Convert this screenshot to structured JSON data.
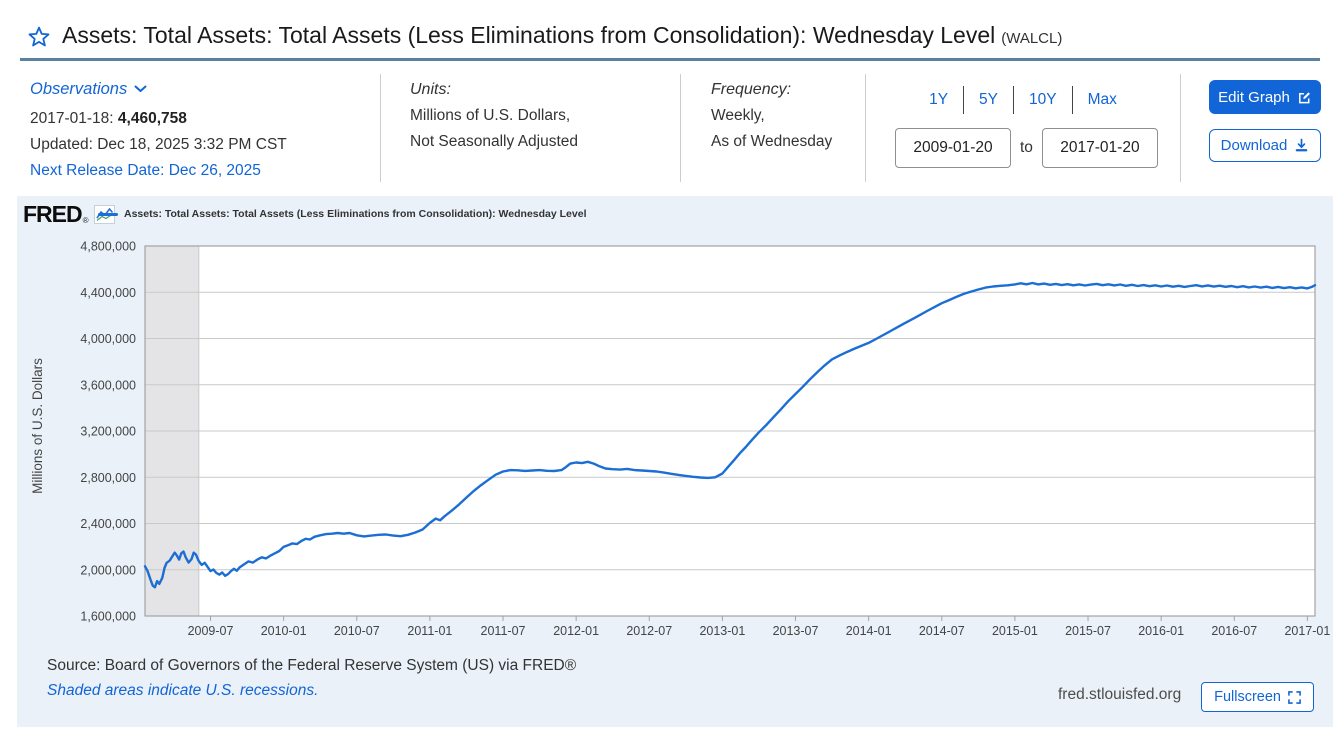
{
  "header": {
    "title": "Assets: Total Assets: Total Assets (Less Eliminations from Consolidation): Wednesday Level",
    "series_id": "(WALCL)"
  },
  "meta": {
    "observations": {
      "label": "Observations",
      "latest_date": "2017-01-18:",
      "latest_value": "4,460,758",
      "updated": "Updated: Dec 18, 2025 3:32 PM CST",
      "next_release": "Next Release Date: Dec 26, 2025"
    },
    "units": {
      "label": "Units:",
      "line1": "Millions of U.S. Dollars,",
      "line2": "Not Seasonally Adjusted"
    },
    "frequency": {
      "label": "Frequency:",
      "line1": "Weekly,",
      "line2": "As of Wednesday"
    },
    "range": {
      "presets": [
        "1Y",
        "5Y",
        "10Y",
        "Max"
      ],
      "start_date": "2009-01-20",
      "to_label": "to",
      "end_date": "2017-01-20"
    },
    "actions": {
      "edit_graph": "Edit Graph",
      "download": "Download"
    }
  },
  "footer": {
    "logo": "FRED",
    "reg": "®",
    "source": "Source: Board of Governors of the Federal Reserve System (US) via FRED®",
    "recession_note": "Shaded areas indicate U.S. recessions.",
    "site": "fred.stlouisfed.org",
    "fullscreen": "Fullscreen"
  },
  "colors": {
    "accent": "#1165d6",
    "line": "#1b6ed3",
    "header_rule": "#5b81a1",
    "card_bg": "#eaf1f9",
    "recession": "#e4e4e6"
  },
  "chart_data": {
    "type": "line",
    "title": "Assets: Total Assets: Total Assets (Less Eliminations from Consolidation): Wednesday Level",
    "ylabel": "Millions of U.S. Dollars",
    "ylim": [
      1600000,
      4800000
    ],
    "ytick_step": 400000,
    "grid": true,
    "legend_position": "top-left",
    "x_range_decimal_years": [
      2009.052,
      2017.052
    ],
    "x_ticks": [
      "2009-07",
      "2010-01",
      "2010-07",
      "2011-01",
      "2011-07",
      "2012-01",
      "2012-07",
      "2013-01",
      "2013-07",
      "2014-01",
      "2014-07",
      "2015-01",
      "2015-07",
      "2016-01",
      "2016-07",
      "2017-01"
    ],
    "recession_band_decimal_years": [
      2009.052,
      2009.42
    ],
    "last_observation": {
      "date": "2017-01-18",
      "value": 4460758
    },
    "series": [
      {
        "name": "Assets: Total Assets: Total Assets (Less Eliminations from Consolidation): Wednesday Level",
        "color": "#1b6ed3",
        "points": [
          [
            2009.052,
            2030000
          ],
          [
            2009.07,
            1988000
          ],
          [
            2009.09,
            1912000
          ],
          [
            2009.105,
            1862000
          ],
          [
            2009.12,
            1848000
          ],
          [
            2009.135,
            1902000
          ],
          [
            2009.15,
            1878000
          ],
          [
            2009.17,
            1930000
          ],
          [
            2009.185,
            2015000
          ],
          [
            2009.2,
            2060000
          ],
          [
            2009.22,
            2078000
          ],
          [
            2009.24,
            2118000
          ],
          [
            2009.255,
            2148000
          ],
          [
            2009.27,
            2122000
          ],
          [
            2009.285,
            2088000
          ],
          [
            2009.3,
            2142000
          ],
          [
            2009.315,
            2158000
          ],
          [
            2009.33,
            2108000
          ],
          [
            2009.35,
            2062000
          ],
          [
            2009.37,
            2092000
          ],
          [
            2009.385,
            2148000
          ],
          [
            2009.4,
            2132000
          ],
          [
            2009.42,
            2075000
          ],
          [
            2009.44,
            2042000
          ],
          [
            2009.46,
            2060000
          ],
          [
            2009.48,
            2025000
          ],
          [
            2009.5,
            1988000
          ],
          [
            2009.52,
            2002000
          ],
          [
            2009.54,
            1972000
          ],
          [
            2009.56,
            1958000
          ],
          [
            2009.58,
            1976000
          ],
          [
            2009.6,
            1948000
          ],
          [
            2009.62,
            1962000
          ],
          [
            2009.64,
            1988000
          ],
          [
            2009.66,
            2008000
          ],
          [
            2009.68,
            1992000
          ],
          [
            2009.7,
            2022000
          ],
          [
            2009.73,
            2048000
          ],
          [
            2009.76,
            2072000
          ],
          [
            2009.79,
            2062000
          ],
          [
            2009.82,
            2088000
          ],
          [
            2009.85,
            2108000
          ],
          [
            2009.88,
            2098000
          ],
          [
            2009.91,
            2122000
          ],
          [
            2009.94,
            2142000
          ],
          [
            2009.97,
            2162000
          ],
          [
            2010.0,
            2198000
          ],
          [
            2010.03,
            2212000
          ],
          [
            2010.06,
            2228000
          ],
          [
            2010.09,
            2222000
          ],
          [
            2010.12,
            2248000
          ],
          [
            2010.15,
            2268000
          ],
          [
            2010.18,
            2262000
          ],
          [
            2010.21,
            2285000
          ],
          [
            2010.25,
            2298000
          ],
          [
            2010.29,
            2308000
          ],
          [
            2010.33,
            2312000
          ],
          [
            2010.37,
            2318000
          ],
          [
            2010.41,
            2312000
          ],
          [
            2010.45,
            2318000
          ],
          [
            2010.5,
            2298000
          ],
          [
            2010.55,
            2288000
          ],
          [
            2010.6,
            2295000
          ],
          [
            2010.65,
            2302000
          ],
          [
            2010.7,
            2305000
          ],
          [
            2010.75,
            2295000
          ],
          [
            2010.8,
            2290000
          ],
          [
            2010.85,
            2302000
          ],
          [
            2010.9,
            2322000
          ],
          [
            2010.95,
            2348000
          ],
          [
            2011.0,
            2405000
          ],
          [
            2011.04,
            2442000
          ],
          [
            2011.07,
            2428000
          ],
          [
            2011.1,
            2462000
          ],
          [
            2011.15,
            2512000
          ],
          [
            2011.2,
            2565000
          ],
          [
            2011.25,
            2625000
          ],
          [
            2011.3,
            2682000
          ],
          [
            2011.35,
            2732000
          ],
          [
            2011.4,
            2778000
          ],
          [
            2011.45,
            2822000
          ],
          [
            2011.5,
            2850000
          ],
          [
            2011.55,
            2862000
          ],
          [
            2011.6,
            2860000
          ],
          [
            2011.65,
            2855000
          ],
          [
            2011.7,
            2858000
          ],
          [
            2011.75,
            2862000
          ],
          [
            2011.8,
            2856000
          ],
          [
            2011.85,
            2854000
          ],
          [
            2011.9,
            2862000
          ],
          [
            2011.93,
            2888000
          ],
          [
            2011.96,
            2918000
          ],
          [
            2012.0,
            2928000
          ],
          [
            2012.04,
            2922000
          ],
          [
            2012.08,
            2934000
          ],
          [
            2012.12,
            2918000
          ],
          [
            2012.16,
            2895000
          ],
          [
            2012.2,
            2876000
          ],
          [
            2012.25,
            2870000
          ],
          [
            2012.3,
            2866000
          ],
          [
            2012.35,
            2872000
          ],
          [
            2012.4,
            2862000
          ],
          [
            2012.45,
            2858000
          ],
          [
            2012.5,
            2854000
          ],
          [
            2012.55,
            2850000
          ],
          [
            2012.6,
            2840000
          ],
          [
            2012.65,
            2830000
          ],
          [
            2012.7,
            2820000
          ],
          [
            2012.75,
            2812000
          ],
          [
            2012.8,
            2804000
          ],
          [
            2012.85,
            2798000
          ],
          [
            2012.9,
            2794000
          ],
          [
            2012.95,
            2800000
          ],
          [
            2013.0,
            2832000
          ],
          [
            2013.04,
            2890000
          ],
          [
            2013.08,
            2948000
          ],
          [
            2013.12,
            3008000
          ],
          [
            2013.16,
            3062000
          ],
          [
            2013.2,
            3120000
          ],
          [
            2013.25,
            3190000
          ],
          [
            2013.3,
            3252000
          ],
          [
            2013.35,
            3320000
          ],
          [
            2013.4,
            3388000
          ],
          [
            2013.45,
            3458000
          ],
          [
            2013.5,
            3520000
          ],
          [
            2013.55,
            3582000
          ],
          [
            2013.6,
            3648000
          ],
          [
            2013.65,
            3710000
          ],
          [
            2013.7,
            3768000
          ],
          [
            2013.75,
            3820000
          ],
          [
            2013.8,
            3852000
          ],
          [
            2013.85,
            3882000
          ],
          [
            2013.9,
            3910000
          ],
          [
            2013.95,
            3936000
          ],
          [
            2014.0,
            3962000
          ],
          [
            2014.05,
            3996000
          ],
          [
            2014.1,
            4030000
          ],
          [
            2014.15,
            4065000
          ],
          [
            2014.2,
            4100000
          ],
          [
            2014.25,
            4135000
          ],
          [
            2014.3,
            4168000
          ],
          [
            2014.35,
            4202000
          ],
          [
            2014.4,
            4238000
          ],
          [
            2014.45,
            4272000
          ],
          [
            2014.5,
            4305000
          ],
          [
            2014.55,
            4332000
          ],
          [
            2014.6,
            4360000
          ],
          [
            2014.65,
            4386000
          ],
          [
            2014.7,
            4406000
          ],
          [
            2014.75,
            4424000
          ],
          [
            2014.8,
            4440000
          ],
          [
            2014.85,
            4450000
          ],
          [
            2014.9,
            4456000
          ],
          [
            2014.95,
            4460000
          ],
          [
            2015.0,
            4468000
          ],
          [
            2015.04,
            4477000
          ],
          [
            2015.08,
            4469000
          ],
          [
            2015.12,
            4480000
          ],
          [
            2015.16,
            4468000
          ],
          [
            2015.2,
            4475000
          ],
          [
            2015.24,
            4464000
          ],
          [
            2015.28,
            4472000
          ],
          [
            2015.32,
            4462000
          ],
          [
            2015.36,
            4470000
          ],
          [
            2015.4,
            4460000
          ],
          [
            2015.44,
            4468000
          ],
          [
            2015.48,
            4458000
          ],
          [
            2015.52,
            4466000
          ],
          [
            2015.56,
            4472000
          ],
          [
            2015.6,
            4461000
          ],
          [
            2015.64,
            4469000
          ],
          [
            2015.68,
            4459000
          ],
          [
            2015.72,
            4467000
          ],
          [
            2015.76,
            4456000
          ],
          [
            2015.8,
            4464000
          ],
          [
            2015.84,
            4454000
          ],
          [
            2015.88,
            4462000
          ],
          [
            2015.92,
            4452000
          ],
          [
            2015.96,
            4460000
          ],
          [
            2016.0,
            4450000
          ],
          [
            2016.04,
            4458000
          ],
          [
            2016.08,
            4448000
          ],
          [
            2016.12,
            4456000
          ],
          [
            2016.16,
            4446000
          ],
          [
            2016.2,
            4454000
          ],
          [
            2016.24,
            4461000
          ],
          [
            2016.28,
            4451000
          ],
          [
            2016.32,
            4459000
          ],
          [
            2016.36,
            4449000
          ],
          [
            2016.4,
            4457000
          ],
          [
            2016.44,
            4447000
          ],
          [
            2016.48,
            4454000
          ],
          [
            2016.52,
            4444000
          ],
          [
            2016.56,
            4452000
          ],
          [
            2016.6,
            4442000
          ],
          [
            2016.64,
            4450000
          ],
          [
            2016.68,
            4440000
          ],
          [
            2016.72,
            4448000
          ],
          [
            2016.76,
            4438000
          ],
          [
            2016.8,
            4446000
          ],
          [
            2016.84,
            4436000
          ],
          [
            2016.88,
            4444000
          ],
          [
            2016.92,
            4434000
          ],
          [
            2016.96,
            4442000
          ],
          [
            2017.0,
            4433000
          ],
          [
            2017.03,
            4446000
          ],
          [
            2017.052,
            4460758
          ]
        ]
      }
    ]
  }
}
